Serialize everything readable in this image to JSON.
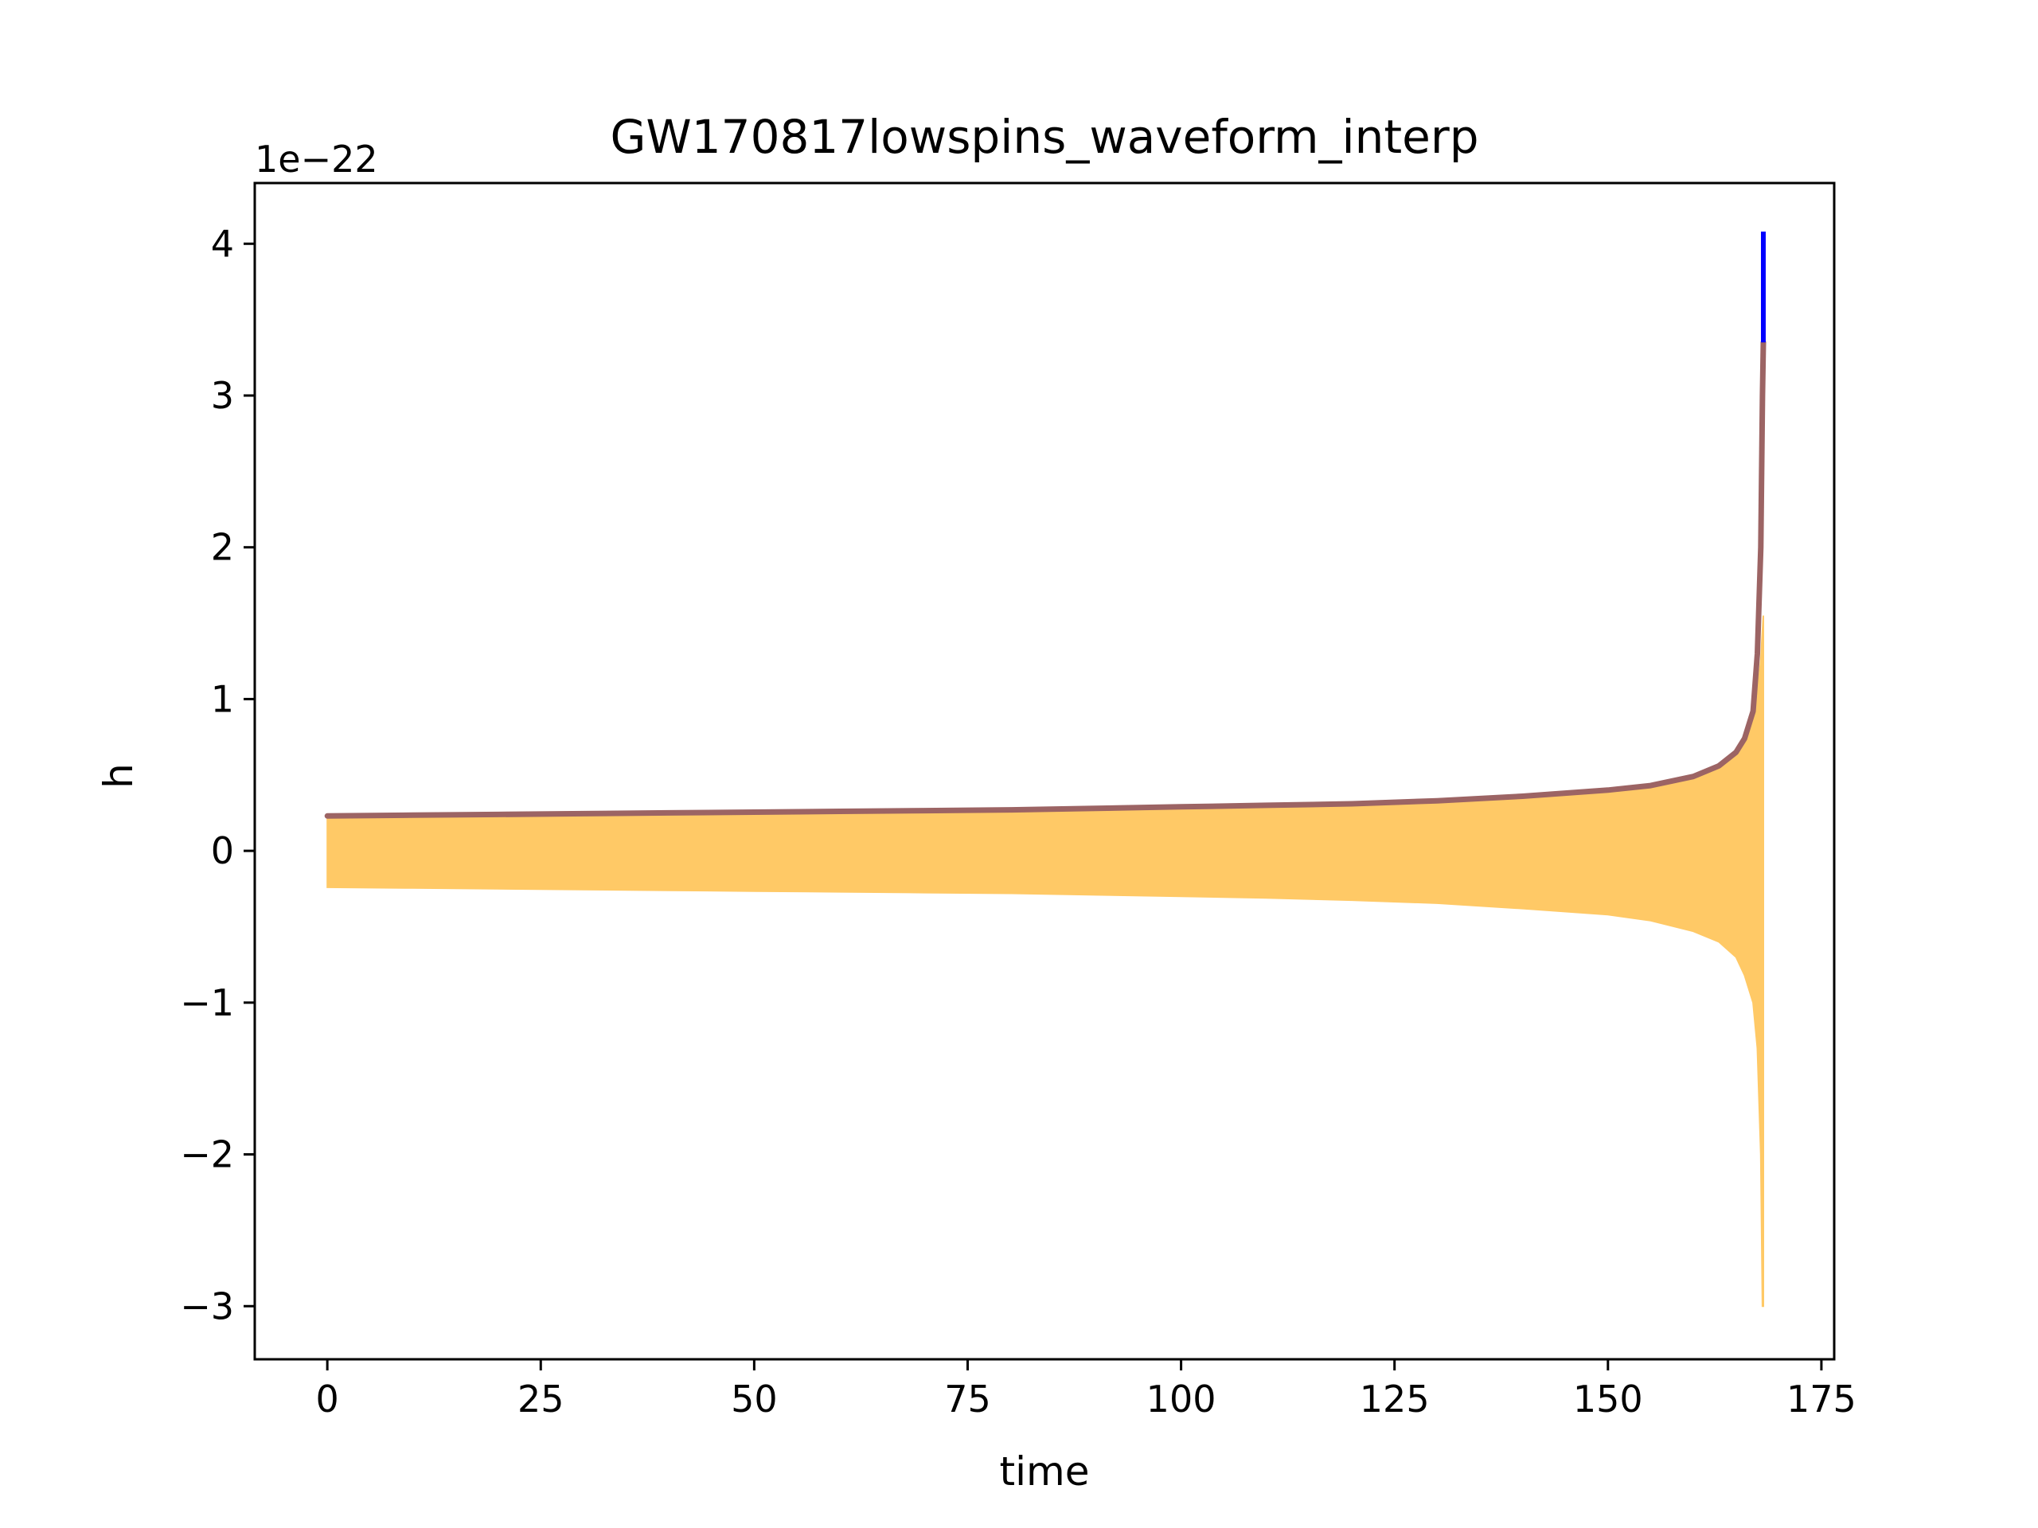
{
  "chart_data": {
    "type": "line",
    "title": "GW170817lowspins_waveform_interp",
    "xlabel": "time",
    "ylabel": "h",
    "y_offset_label": "1e−22",
    "xlim": [
      -8.5,
      176.5
    ],
    "ylim": [
      -3.35,
      4.4
    ],
    "grid": false,
    "legend": "none",
    "x_ticks": [
      0,
      25,
      50,
      75,
      100,
      125,
      150,
      175
    ],
    "x_tick_labels": [
      "0",
      "25",
      "50",
      "75",
      "100",
      "125",
      "150",
      "175"
    ],
    "y_ticks": [
      -3,
      -2,
      -1,
      0,
      1,
      2,
      3,
      4
    ],
    "y_tick_labels": [
      "−3",
      "−2",
      "−1",
      "0",
      "1",
      "2",
      "3",
      "4"
    ],
    "series": [
      {
        "kind": "fill",
        "color": "#ffc966",
        "x": [
          0,
          10,
          20,
          30,
          40,
          50,
          60,
          70,
          80,
          90,
          100,
          110,
          120,
          130,
          140,
          150,
          155,
          160,
          163,
          165,
          166,
          167,
          167.5,
          167.9,
          168.1,
          168.2
        ],
        "upper": [
          0.21,
          0.215,
          0.22,
          0.225,
          0.23,
          0.235,
          0.24,
          0.245,
          0.25,
          0.26,
          0.27,
          0.28,
          0.29,
          0.31,
          0.34,
          0.38,
          0.41,
          0.47,
          0.54,
          0.63,
          0.72,
          0.87,
          1.05,
          1.25,
          1.45,
          1.55
        ],
        "lower": [
          -0.24,
          -0.245,
          -0.25,
          -0.255,
          -0.26,
          -0.265,
          -0.27,
          -0.275,
          -0.28,
          -0.29,
          -0.3,
          -0.31,
          -0.325,
          -0.345,
          -0.38,
          -0.42,
          -0.46,
          -0.53,
          -0.6,
          -0.7,
          -0.82,
          -1.0,
          -1.3,
          -2.0,
          -3.0,
          -3.0
        ]
      },
      {
        "kind": "line",
        "color": "#9c6464",
        "x": [
          0,
          10,
          20,
          30,
          40,
          50,
          60,
          70,
          80,
          90,
          100,
          110,
          120,
          130,
          140,
          150,
          155,
          160,
          163,
          165,
          166,
          167,
          167.5,
          167.9,
          168.1,
          168.2
        ],
        "y": [
          0.23,
          0.235,
          0.24,
          0.245,
          0.25,
          0.255,
          0.26,
          0.265,
          0.27,
          0.28,
          0.29,
          0.3,
          0.31,
          0.33,
          0.36,
          0.4,
          0.43,
          0.49,
          0.56,
          0.65,
          0.74,
          0.92,
          1.3,
          2.0,
          3.0,
          3.35
        ]
      },
      {
        "kind": "spike",
        "color": "#0000ff",
        "x": [
          168.2,
          168.2
        ],
        "y": [
          3.35,
          4.08
        ]
      }
    ]
  }
}
